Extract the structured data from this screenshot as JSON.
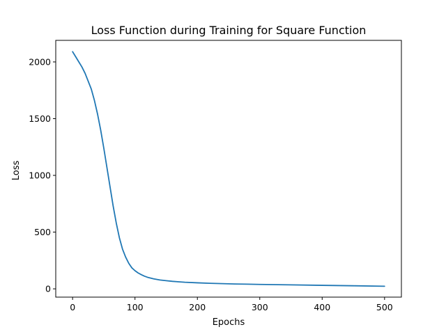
{
  "chart_data": {
    "type": "line",
    "title": "Loss Function during Training for Square Function",
    "xlabel": "Epochs",
    "ylabel": "Loss",
    "xlim": [
      -27,
      527
    ],
    "ylim": [
      -73,
      2190
    ],
    "xticks": [
      0,
      100,
      200,
      300,
      400,
      500
    ],
    "yticks": [
      0,
      500,
      1000,
      1500,
      2000
    ],
    "grid": false,
    "legend": "none",
    "series": [
      {
        "color": "#1f77b4",
        "x": [
          0,
          5,
          10,
          15,
          20,
          25,
          30,
          35,
          40,
          45,
          50,
          55,
          60,
          65,
          70,
          75,
          80,
          85,
          90,
          95,
          100,
          105,
          110,
          115,
          120,
          130,
          140,
          150,
          160,
          170,
          180,
          200,
          220,
          240,
          260,
          280,
          300,
          350,
          400,
          450,
          500
        ],
        "y": [
          2090,
          2045,
          2000,
          1955,
          1900,
          1830,
          1760,
          1660,
          1540,
          1400,
          1240,
          1070,
          900,
          730,
          580,
          450,
          350,
          280,
          225,
          185,
          160,
          140,
          125,
          112,
          102,
          88,
          78,
          72,
          66,
          62,
          58,
          53,
          49,
          46,
          43,
          41,
          39,
          35,
          31,
          27,
          23
        ]
      }
    ]
  }
}
